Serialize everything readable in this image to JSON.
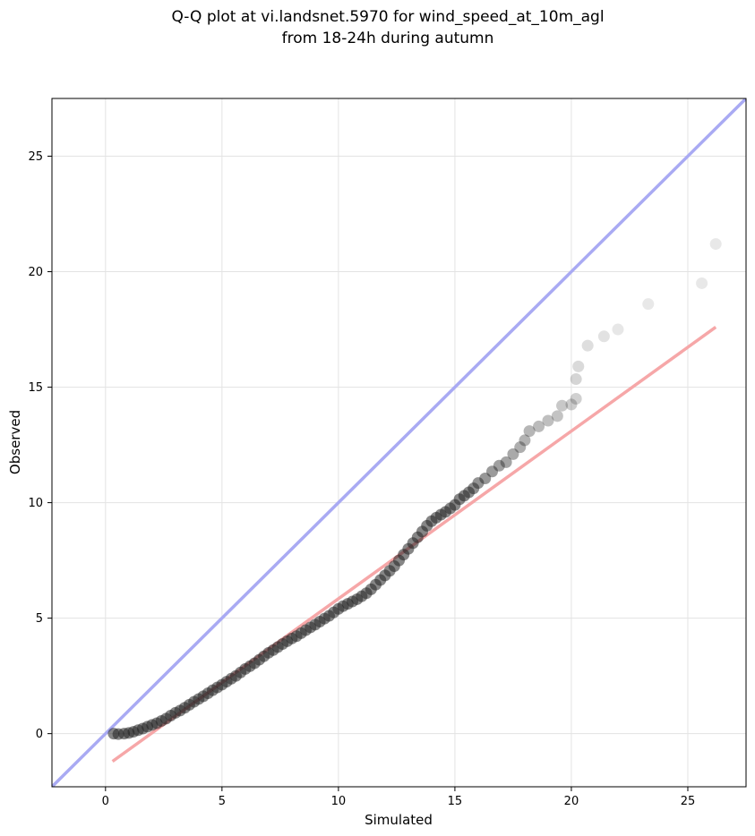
{
  "chart_data": {
    "type": "scatter",
    "title_lines": [
      "Q-Q plot at vi.landsnet.5970 for wind_speed_at_10m_agl",
      "from 18-24h during autumn"
    ],
    "xlabel": "Simulated",
    "ylabel": "Observed",
    "xlim": [
      -2.3,
      27.5
    ],
    "ylim": [
      -2.3,
      27.5
    ],
    "xticks": [
      0,
      5,
      10,
      15,
      20,
      25
    ],
    "yticks": [
      0,
      5,
      10,
      15,
      20,
      25
    ],
    "grid": true,
    "colors": {
      "points": "#222222",
      "identity_line": "#a9aaf3",
      "fit_line": "#f6a7a8",
      "grid": "#e3e3e3"
    },
    "identity_line": {
      "x": [
        -2.3,
        27.5
      ],
      "y": [
        -2.3,
        27.5
      ]
    },
    "fit_line": {
      "x": [
        0.3,
        26.2
      ],
      "y": [
        -1.2,
        17.6
      ]
    },
    "points": [
      [
        0.35,
        0.0
      ],
      [
        0.55,
        -0.02
      ],
      [
        0.8,
        0.0
      ],
      [
        1.0,
        0.03
      ],
      [
        1.2,
        0.08
      ],
      [
        1.4,
        0.15
      ],
      [
        1.6,
        0.22
      ],
      [
        1.8,
        0.3
      ],
      [
        2.0,
        0.38
      ],
      [
        2.2,
        0.45
      ],
      [
        2.4,
        0.55
      ],
      [
        2.6,
        0.65
      ],
      [
        2.8,
        0.78
      ],
      [
        3.0,
        0.9
      ],
      [
        3.2,
        1.0
      ],
      [
        3.4,
        1.12
      ],
      [
        3.6,
        1.25
      ],
      [
        3.8,
        1.38
      ],
      [
        4.0,
        1.5
      ],
      [
        4.2,
        1.62
      ],
      [
        4.4,
        1.75
      ],
      [
        4.6,
        1.88
      ],
      [
        4.8,
        2.0
      ],
      [
        5.0,
        2.12
      ],
      [
        5.2,
        2.25
      ],
      [
        5.4,
        2.38
      ],
      [
        5.6,
        2.5
      ],
      [
        5.8,
        2.65
      ],
      [
        6.0,
        2.8
      ],
      [
        6.2,
        2.92
      ],
      [
        6.4,
        3.05
      ],
      [
        6.6,
        3.2
      ],
      [
        6.8,
        3.35
      ],
      [
        7.0,
        3.5
      ],
      [
        7.2,
        3.62
      ],
      [
        7.4,
        3.75
      ],
      [
        7.6,
        3.88
      ],
      [
        7.8,
        4.0
      ],
      [
        8.0,
        4.12
      ],
      [
        8.2,
        4.22
      ],
      [
        8.4,
        4.35
      ],
      [
        8.6,
        4.48
      ],
      [
        8.8,
        4.6
      ],
      [
        9.0,
        4.72
      ],
      [
        9.2,
        4.85
      ],
      [
        9.4,
        4.98
      ],
      [
        9.6,
        5.1
      ],
      [
        9.8,
        5.25
      ],
      [
        10.0,
        5.4
      ],
      [
        10.2,
        5.52
      ],
      [
        10.4,
        5.62
      ],
      [
        10.6,
        5.72
      ],
      [
        10.8,
        5.82
      ],
      [
        11.0,
        5.95
      ],
      [
        11.2,
        6.08
      ],
      [
        11.4,
        6.25
      ],
      [
        11.6,
        6.45
      ],
      [
        11.8,
        6.65
      ],
      [
        12.0,
        6.85
      ],
      [
        12.2,
        7.05
      ],
      [
        12.4,
        7.25
      ],
      [
        12.6,
        7.5
      ],
      [
        12.8,
        7.75
      ],
      [
        13.0,
        8.0
      ],
      [
        13.2,
        8.25
      ],
      [
        13.4,
        8.5
      ],
      [
        13.6,
        8.75
      ],
      [
        13.8,
        9.0
      ],
      [
        14.0,
        9.2
      ],
      [
        14.2,
        9.35
      ],
      [
        14.4,
        9.48
      ],
      [
        14.6,
        9.6
      ],
      [
        14.8,
        9.75
      ],
      [
        15.0,
        9.9
      ],
      [
        15.2,
        10.15
      ],
      [
        15.4,
        10.3
      ],
      [
        15.6,
        10.45
      ],
      [
        15.8,
        10.62
      ],
      [
        16.0,
        10.85
      ],
      [
        16.3,
        11.05
      ],
      [
        16.6,
        11.35
      ],
      [
        16.9,
        11.6
      ],
      [
        17.2,
        11.75
      ],
      [
        17.5,
        12.1
      ],
      [
        17.8,
        12.4
      ],
      [
        18.0,
        12.7
      ],
      [
        18.2,
        13.1
      ],
      [
        18.6,
        13.3
      ],
      [
        19.0,
        13.55
      ],
      [
        19.4,
        13.75
      ],
      [
        19.6,
        14.2
      ],
      [
        20.0,
        14.25
      ],
      [
        20.2,
        14.5
      ],
      [
        20.2,
        15.35
      ],
      [
        20.3,
        15.9
      ],
      [
        20.7,
        16.8
      ],
      [
        21.4,
        17.2
      ],
      [
        22.0,
        17.5
      ],
      [
        23.3,
        18.6
      ],
      [
        25.6,
        19.5
      ],
      [
        26.2,
        21.2
      ]
    ]
  }
}
